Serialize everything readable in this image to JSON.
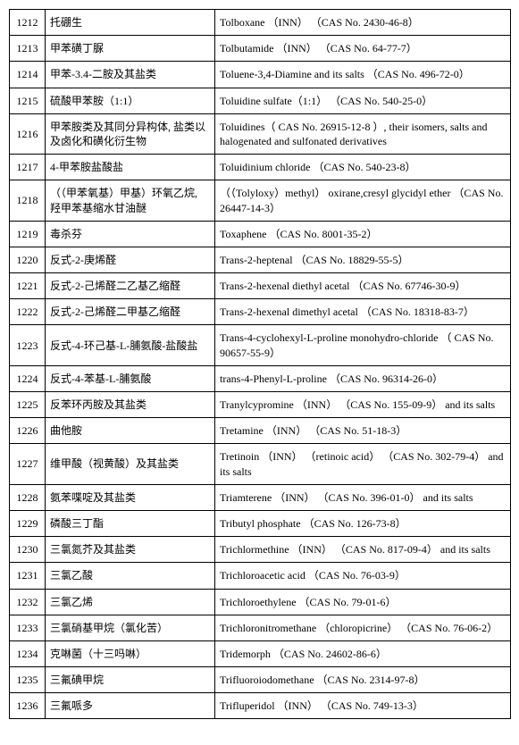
{
  "table": {
    "rows": [
      {
        "num": "1212",
        "cn": "托硼生",
        "en": "Tolboxane  （INN） （CAS No. 2430-46-8）"
      },
      {
        "num": "1213",
        "cn": "甲苯磺丁脲",
        "en": "Tolbutamide  （INN） （CAS No. 64-77-7）"
      },
      {
        "num": "1214",
        "cn": "甲苯-3.4-二胺及其盐类",
        "en": "Toluene-3,4-Diamine and its salts  （CAS No. 496-72-0）"
      },
      {
        "num": "1215",
        "cn": "硫酸甲苯胺（1:1）",
        "en": "Toluidine sulfate（1:1） （CAS No. 540-25-0）"
      },
      {
        "num": "1216",
        "cn": "甲苯胺类及其同分异构体, 盐类以及卤化和磺化衍生物",
        "en": "Toluidines（ CAS No. 26915-12-8 ）, their isomers, salts and halogenated and sulfonated derivatives"
      },
      {
        "num": "1217",
        "cn": "4-甲苯胺盐酸盐",
        "en": "Toluidinium chloride  （CAS No. 540-23-8）"
      },
      {
        "num": "1218",
        "cn": "（（甲苯氧基）甲基）环氧乙烷, 羟甲苯基缩水甘油醚",
        "en": "（（Tolyloxy）methyl） oxirane,cresyl glycidyl ether （CAS No. 26447-14-3）"
      },
      {
        "num": "1219",
        "cn": "毒杀芬",
        "en": "Toxaphene  （CAS No. 8001-35-2）"
      },
      {
        "num": "1220",
        "cn": "反式-2-庚烯醛",
        "en": "Trans-2-heptenal  （CAS No. 18829-55-5）"
      },
      {
        "num": "1221",
        "cn": "反式-2-己烯醛二乙基乙缩醛",
        "en": "Trans-2-hexenal diethyl acetal  （CAS No. 67746-30-9）"
      },
      {
        "num": "1222",
        "cn": "反式-2-己烯醛二甲基乙缩醛",
        "en": "Trans-2-hexenal dimethyl acetal  （CAS No. 18318-83-7）"
      },
      {
        "num": "1223",
        "cn": "反式-4-环己基-L-脯氨酸-盐酸盐",
        "en": "Trans-4-cyclohexyl-L-proline monohydro-chloride  （ CAS No. 90657-55-9）"
      },
      {
        "num": "1224",
        "cn": "反式-4-苯基-L-脯氨酸",
        "en": "trans-4-Phenyl-L-proline  （CAS No. 96314-26-0）"
      },
      {
        "num": "1225",
        "cn": "反苯环丙胺及其盐类",
        "en": "Tranylcypromine  （INN） （CAS No. 155-09-9）  and its salts"
      },
      {
        "num": "1226",
        "cn": "曲他胺",
        "en": "Tretamine  （INN） （CAS No. 51-18-3）"
      },
      {
        "num": "1227",
        "cn": "维甲酸（视黄酸）及其盐类",
        "en": "Tretinoin （INN） （retinoic acid） （CAS No. 302-79-4）  and its salts"
      },
      {
        "num": "1228",
        "cn": "氨苯喋啶及其盐类",
        "en": "Triamterene  （INN）  （CAS No. 396-01-0）  and its salts"
      },
      {
        "num": "1229",
        "cn": "磷酸三丁酯",
        "en": "Tributyl phosphate  （CAS No. 126-73-8）"
      },
      {
        "num": "1230",
        "cn": "三氯氮芥及其盐类",
        "en": "Trichlormethine  （INN）  （CAS No. 817-09-4）  and its salts"
      },
      {
        "num": "1231",
        "cn": "三氯乙酸",
        "en": "Trichloroacetic acid  （CAS No. 76-03-9）"
      },
      {
        "num": "1232",
        "cn": "三氯乙烯",
        "en": "Trichloroethylene  （CAS No. 79-01-6）"
      },
      {
        "num": "1233",
        "cn": "三氯硝基甲烷（氯化苦）",
        "en": "Trichloronitromethane  （chloropicrine）  （CAS No. 76-06-2）"
      },
      {
        "num": "1234",
        "cn": "克啉菌（十三吗啉）",
        "en": "Tridemorph  （CAS No. 24602-86-6）"
      },
      {
        "num": "1235",
        "cn": "三氟碘甲烷",
        "en": "Trifluoroiodomethane  （CAS No. 2314-97-8）"
      },
      {
        "num": "1236",
        "cn": "三氟哌多",
        "en": "Trifluperidol  （INN）  （CAS No. 749-13-3）"
      }
    ]
  }
}
